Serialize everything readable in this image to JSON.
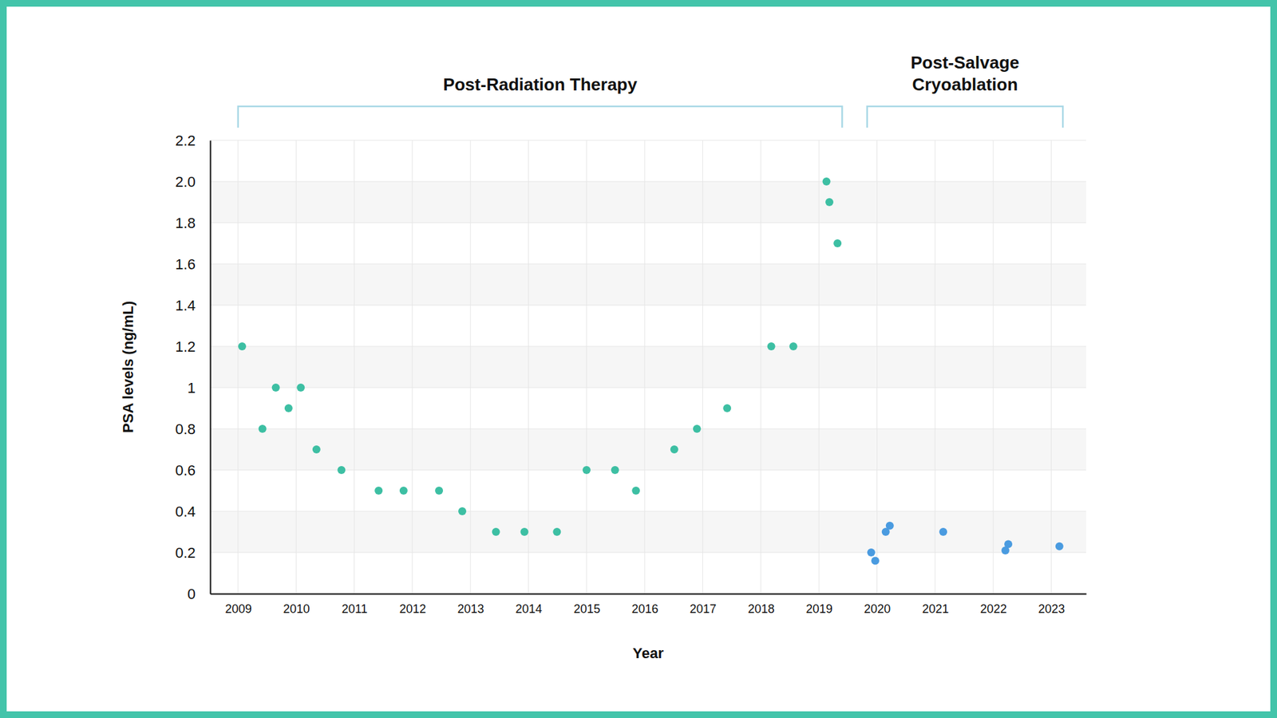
{
  "chart_data": {
    "type": "scatter",
    "x_label": "Year",
    "y_label": "PSA levels (ng/mL)",
    "xlim": [
      2008.52,
      2023.6
    ],
    "xticks": [
      2009,
      2010,
      2011,
      2012,
      2013,
      2014,
      2015,
      2016,
      2017,
      2018,
      2019,
      2020,
      2021,
      2022,
      2023
    ],
    "ylim": [
      0,
      2.2
    ],
    "yticks": [
      0,
      0.2,
      0.4,
      0.6,
      0.8,
      1,
      1.2,
      1.4,
      1.6,
      1.8,
      {
        "value": 2,
        "label": "2.0"
      },
      2.2
    ],
    "grid": true,
    "marker": "circle",
    "annotations": [
      {
        "text": [
          "Post-Radiation Therapy"
        ],
        "xrange": [
          2009,
          2019.4
        ]
      },
      {
        "text": [
          "Post-Salvage",
          "Cryoablation"
        ],
        "xrange": [
          2019.83,
          2023.2
        ]
      }
    ],
    "series": [
      {
        "color": "#3dbfa3",
        "x": [
          2009.07,
          2009.42,
          2009.65,
          2009.87,
          2010.08,
          2010.35,
          2010.78,
          2011.42,
          2011.85,
          2012.46,
          2012.86,
          2013.44,
          2013.93,
          2014.49,
          2015.0,
          2015.49,
          2015.85,
          2016.51,
          2016.9,
          2017.42,
          2018.18,
          2018.56,
          2019.13,
          2019.18,
          2019.32
        ],
        "values": [
          1.2,
          0.8,
          1.0,
          0.9,
          1.0,
          0.7,
          0.6,
          0.5,
          0.5,
          0.5,
          0.4,
          0.3,
          0.3,
          0.3,
          0.6,
          0.6,
          0.5,
          0.7,
          0.8,
          0.9,
          1.2,
          1.2,
          2.0,
          1.9,
          1.7
        ]
      },
      {
        "color": "#4a9be0",
        "x": [
          2019.9,
          2019.97,
          2020.15,
          2020.22,
          2021.14,
          2022.21,
          2022.26,
          2023.14
        ],
        "values": [
          0.2,
          0.16,
          0.3,
          0.33,
          0.3,
          0.21,
          0.24,
          0.23
        ]
      }
    ]
  }
}
